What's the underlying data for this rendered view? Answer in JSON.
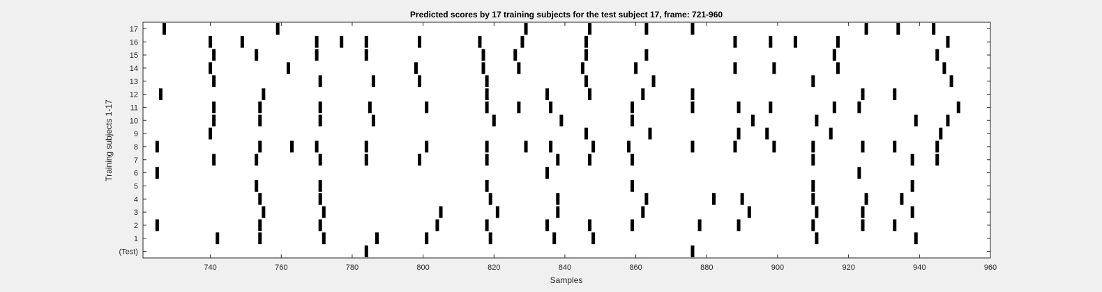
{
  "chart_data": {
    "type": "scatter",
    "marker": "vertical-bar",
    "title": "Predicted scores by 17 training subjects for the test subject 17, frame: 721-960",
    "xlabel": "Samples",
    "ylabel": "Training subjects 1-17",
    "xlim": [
      721,
      960
    ],
    "x_ticks": [
      740,
      760,
      780,
      800,
      820,
      840,
      860,
      880,
      900,
      920,
      940,
      960
    ],
    "y_tick_labels": [
      "(Test)",
      "1",
      "2",
      "3",
      "4",
      "5",
      "6",
      "7",
      "8",
      "9",
      "10",
      "11",
      "12",
      "13",
      "14",
      "15",
      "16",
      "17"
    ],
    "grid": false,
    "colors": {
      "marks": "#000000",
      "axes_bg": "#ffffff",
      "figure_bg": "#f0f0f0"
    },
    "series": [
      {
        "row": "(Test)",
        "x": [
          784,
          876
        ]
      },
      {
        "row": "1",
        "x": [
          742,
          754,
          772,
          787,
          801,
          819,
          837,
          848,
          911,
          939
        ]
      },
      {
        "row": "2",
        "x": [
          725,
          754,
          771,
          804,
          818,
          835,
          847,
          859,
          878,
          889,
          910,
          924,
          933
        ]
      },
      {
        "row": "3",
        "x": [
          755,
          772,
          805,
          821,
          838,
          862,
          892,
          911,
          924,
          938
        ]
      },
      {
        "row": "4",
        "x": [
          754,
          771,
          819,
          838,
          863,
          882,
          890,
          910,
          925,
          935
        ]
      },
      {
        "row": "5",
        "x": [
          753,
          771,
          818,
          859,
          910,
          938
        ]
      },
      {
        "row": "6",
        "x": [
          725,
          835,
          923
        ]
      },
      {
        "row": "7",
        "x": [
          741,
          753,
          771,
          784,
          799,
          818,
          838,
          847,
          859,
          910,
          938,
          945
        ]
      },
      {
        "row": "8",
        "x": [
          725,
          754,
          763,
          770,
          784,
          801,
          818,
          829,
          836,
          848,
          858,
          876,
          888,
          899,
          910,
          924,
          933,
          945
        ]
      },
      {
        "row": "9",
        "x": [
          740,
          846,
          864,
          889,
          897,
          915,
          946
        ]
      },
      {
        "row": "10",
        "x": [
          741,
          754,
          771,
          786,
          820,
          839,
          859,
          893,
          911,
          939,
          948
        ]
      },
      {
        "row": "11",
        "x": [
          741,
          754,
          771,
          785,
          801,
          818,
          827,
          836,
          859,
          876,
          889,
          898,
          916,
          923,
          951
        ]
      },
      {
        "row": "12",
        "x": [
          726,
          755,
          818,
          835,
          847,
          862,
          876,
          924,
          933
        ]
      },
      {
        "row": "13",
        "x": [
          741,
          771,
          786,
          799,
          818,
          846,
          865,
          910,
          949
        ]
      },
      {
        "row": "14",
        "x": [
          740,
          762,
          798,
          817,
          827,
          845,
          860,
          888,
          899,
          917,
          947
        ]
      },
      {
        "row": "15",
        "x": [
          741,
          753,
          770,
          784,
          817,
          826,
          846,
          863,
          916,
          945
        ]
      },
      {
        "row": "16",
        "x": [
          740,
          749,
          770,
          777,
          784,
          799,
          816,
          828,
          846,
          888,
          898,
          905,
          917,
          948
        ]
      },
      {
        "row": "17",
        "x": [
          727,
          759,
          829,
          847,
          863,
          876,
          925,
          934,
          944
        ]
      }
    ]
  }
}
